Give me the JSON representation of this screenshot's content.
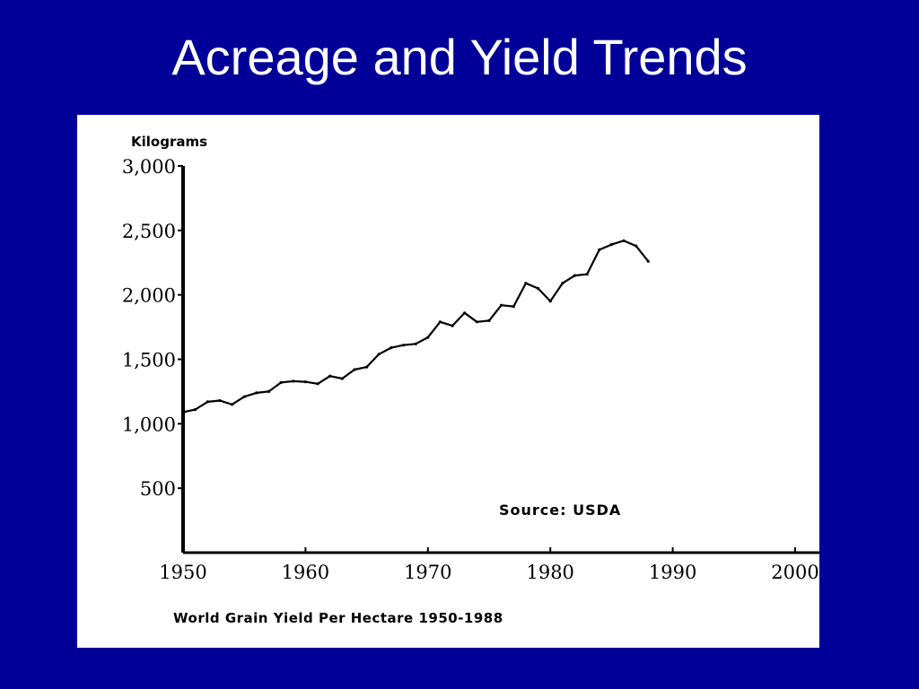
{
  "slide": {
    "title": "Acreage and Yield Trends",
    "background_color": "#000099"
  },
  "chart_data": {
    "type": "line",
    "title": "",
    "ylabel": "Kilograms",
    "xlabel": "World Grain Yield Per Hectare 1950-1988",
    "annotation": "Source: USDA",
    "xlim": [
      1950,
      2000
    ],
    "ylim": [
      0,
      3000
    ],
    "x_ticks": [
      1950,
      1960,
      1970,
      1980,
      1990,
      2000
    ],
    "y_ticks": [
      {
        "value": 500,
        "label": "500"
      },
      {
        "value": 1000,
        "label": "1,000"
      },
      {
        "value": 1500,
        "label": "1,500"
      },
      {
        "value": 2000,
        "label": "2,000"
      },
      {
        "value": 2500,
        "label": "2,500"
      },
      {
        "value": 3000,
        "label": "3,000"
      }
    ],
    "grid": false,
    "series": [
      {
        "x": [
          1950,
          1951,
          1952,
          1953,
          1954,
          1955,
          1956,
          1957,
          1958,
          1959,
          1960,
          1961,
          1962,
          1963,
          1964,
          1965,
          1966,
          1967,
          1968,
          1969,
          1970,
          1971,
          1972,
          1973,
          1974,
          1975,
          1976,
          1977,
          1978,
          1979,
          1980,
          1981,
          1982,
          1983,
          1984,
          1985,
          1986,
          1987,
          1988
        ],
        "y": [
          1090,
          1110,
          1170,
          1180,
          1150,
          1210,
          1240,
          1250,
          1320,
          1330,
          1325,
          1310,
          1370,
          1350,
          1420,
          1440,
          1540,
          1590,
          1610,
          1620,
          1670,
          1790,
          1760,
          1860,
          1790,
          1800,
          1920,
          1910,
          2090,
          2050,
          1950,
          2090,
          2150,
          2160,
          2350,
          2390,
          2420,
          2380,
          2260
        ],
        "color": "#000000"
      }
    ]
  }
}
